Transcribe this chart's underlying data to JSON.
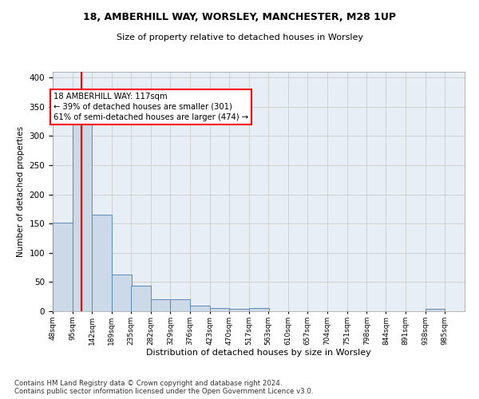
{
  "title1": "18, AMBERHILL WAY, WORSLEY, MANCHESTER, M28 1UP",
  "title2": "Size of property relative to detached houses in Worsley",
  "xlabel": "Distribution of detached houses by size in Worsley",
  "ylabel": "Number of detached properties",
  "footnote": "Contains HM Land Registry data © Crown copyright and database right 2024.\nContains public sector information licensed under the Open Government Licence v3.0.",
  "bin_labels": [
    "48sqm",
    "95sqm",
    "142sqm",
    "189sqm",
    "235sqm",
    "282sqm",
    "329sqm",
    "376sqm",
    "423sqm",
    "470sqm",
    "517sqm",
    "563sqm",
    "610sqm",
    "657sqm",
    "704sqm",
    "751sqm",
    "798sqm",
    "844sqm",
    "891sqm",
    "938sqm",
    "985sqm"
  ],
  "bin_edges": [
    48,
    95,
    142,
    189,
    235,
    282,
    329,
    376,
    423,
    470,
    517,
    563,
    610,
    657,
    704,
    751,
    798,
    844,
    891,
    938,
    985,
    1032
  ],
  "bar_heights": [
    152,
    330,
    165,
    63,
    44,
    21,
    21,
    9,
    5,
    4,
    6,
    0,
    0,
    0,
    0,
    0,
    0,
    0,
    0,
    4,
    0
  ],
  "bar_color": "#ccd9e8",
  "bar_edge_color": "#5b8ab5",
  "property_size": 117,
  "annotation_text": "18 AMBERHILL WAY: 117sqm\n← 39% of detached houses are smaller (301)\n61% of semi-detached houses are larger (474) →",
  "annotation_box_color": "white",
  "annotation_box_edge": "red",
  "red_line_color": "red",
  "ylim": [
    0,
    410
  ],
  "yticks": [
    0,
    50,
    100,
    150,
    200,
    250,
    300,
    350,
    400
  ],
  "grid_color": "#cccccc",
  "bg_color": "#e8eef5"
}
